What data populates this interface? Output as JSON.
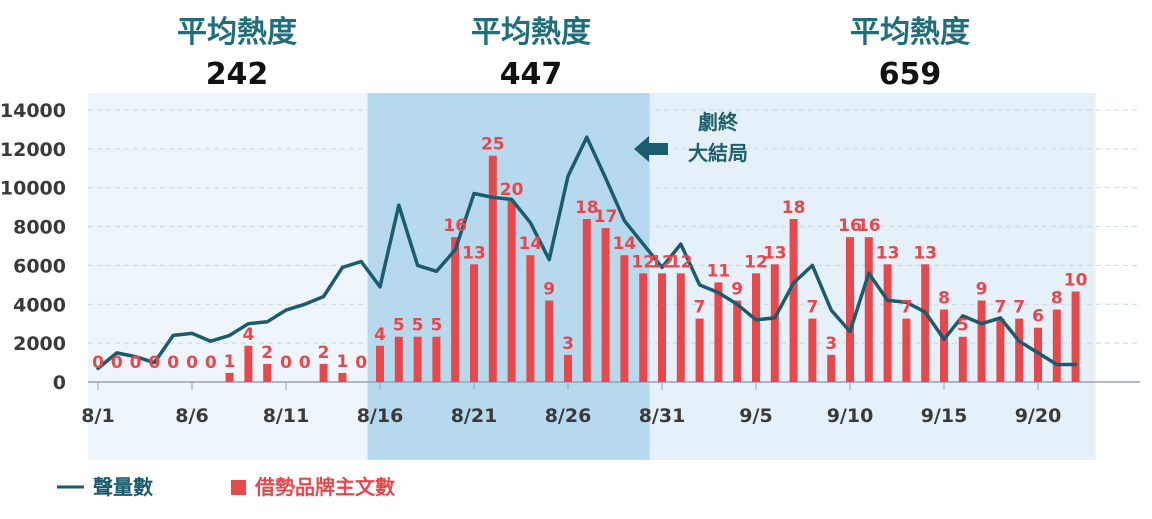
{
  "periods": [
    {
      "heading": "平均熱度",
      "value": "242"
    },
    {
      "heading": "平均熱度",
      "value": "447"
    },
    {
      "heading": "平均熱度",
      "value": "659"
    }
  ],
  "annotation": {
    "line1": "劇終",
    "line2": "大結局"
  },
  "legend": {
    "line": "聲量數",
    "bar": "借勢品牌主文數"
  },
  "colors": {
    "line": "#1b5b6e",
    "bar": "#e8474b",
    "period1_bg": "#eef5fb",
    "period2_bg": "#b7d9ee",
    "period3_bg": "#e6f0f9"
  },
  "chart_data": {
    "type": "bar+line",
    "y_ticks": [
      "0",
      "2000",
      "4000",
      "6000",
      "8000",
      "10000",
      "12000",
      "14000"
    ],
    "ylim": [
      0,
      14000
    ],
    "x_tick_labels": [
      "8/1",
      "8/6",
      "8/11",
      "8/16",
      "8/21",
      "8/26",
      "8/31",
      "9/5",
      "9/10",
      "9/15",
      "9/20"
    ],
    "dates": [
      "8/1",
      "8/2",
      "8/3",
      "8/4",
      "8/5",
      "8/6",
      "8/7",
      "8/8",
      "8/9",
      "8/10",
      "8/11",
      "8/12",
      "8/13",
      "8/14",
      "8/15",
      "8/16",
      "8/17",
      "8/18",
      "8/19",
      "8/20",
      "8/21",
      "8/22",
      "8/23",
      "8/24",
      "8/25",
      "8/26",
      "8/27",
      "8/28",
      "8/29",
      "8/30",
      "8/31",
      "9/1",
      "9/2",
      "9/3",
      "9/4",
      "9/5",
      "9/6",
      "9/7",
      "9/8",
      "9/9",
      "9/10",
      "9/11",
      "9/12",
      "9/13",
      "9/14",
      "9/15",
      "9/16",
      "9/17",
      "9/18",
      "9/19",
      "9/20",
      "9/21",
      "9/22"
    ],
    "bar_series": {
      "name": "借勢品牌主文數",
      "values": [
        0,
        0,
        0,
        0,
        0,
        0,
        0,
        1,
        4,
        2,
        0,
        0,
        2,
        1,
        0,
        4,
        5,
        5,
        5,
        16,
        13,
        25,
        20,
        14,
        9,
        3,
        18,
        17,
        14,
        12,
        12,
        12,
        7,
        11,
        9,
        12,
        13,
        18,
        7,
        3,
        16,
        16,
        13,
        7,
        13,
        8,
        5,
        9,
        7,
        7,
        6,
        8,
        10
      ],
      "labels": [
        "0",
        "0",
        "0",
        "0",
        "0",
        "0",
        "0",
        "1",
        "4",
        "2",
        "0",
        "0",
        "2",
        "1",
        "0",
        "4",
        "5",
        "5",
        "5",
        "16",
        "13",
        "25",
        "20",
        "14",
        "9",
        "3",
        "18",
        "17",
        "14",
        "12",
        "12",
        "12",
        "7",
        "11",
        "9",
        "12",
        "13",
        "18",
        "7",
        "3",
        "16",
        "16",
        "13",
        "7",
        "13",
        "8",
        "5",
        "9",
        "7",
        "7",
        "6",
        "8",
        "10"
      ]
    },
    "line_series": {
      "name": "聲量數",
      "values": [
        700,
        1500,
        1300,
        1000,
        2400,
        2500,
        2100,
        2400,
        3000,
        3100,
        3700,
        4000,
        4400,
        5900,
        6200,
        4900,
        9100,
        6000,
        5700,
        6800,
        9700,
        9500,
        9400,
        8200,
        6300,
        10600,
        12600,
        10500,
        8300,
        7100,
        5900,
        7100,
        5000,
        4600,
        4000,
        3200,
        3300,
        5100,
        6000,
        3700,
        2600,
        5600,
        4200,
        4100,
        3600,
        2200,
        3400,
        3000,
        3300,
        2100,
        1500,
        900,
        900
      ]
    },
    "periods": [
      {
        "start": "8/1",
        "end": "8/15",
        "average": 242
      },
      {
        "start": "8/16",
        "end": "8/30",
        "average": 447
      },
      {
        "start": "8/31",
        "end": "9/22",
        "average": 659
      }
    ],
    "grid": true,
    "legend_position": "bottom-left"
  }
}
